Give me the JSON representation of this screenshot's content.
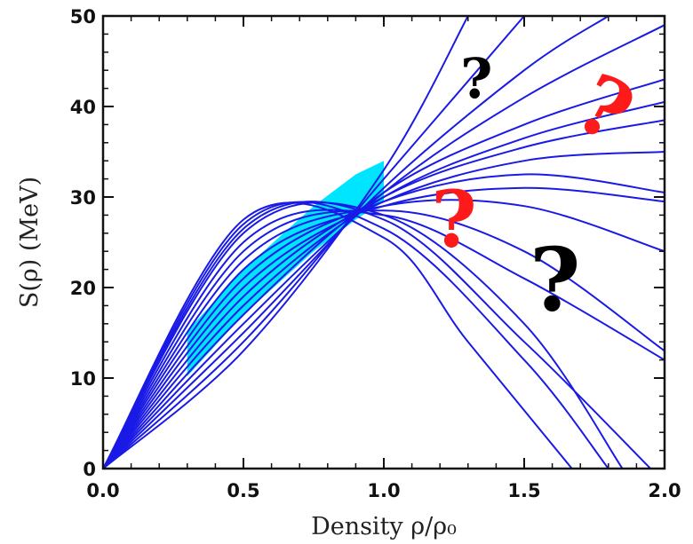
{
  "chart_data": {
    "type": "line",
    "title": "",
    "xlabel": "Density ρ/ρ₀",
    "ylabel": "S(ρ)  (MeV)",
    "xlim": [
      0.0,
      2.0
    ],
    "ylim": [
      0,
      50
    ],
    "x_ticks": [
      "0.0",
      "0.5",
      "1.0",
      "1.5",
      "2.0"
    ],
    "y_ticks": [
      "0",
      "10",
      "20",
      "30",
      "40",
      "50"
    ],
    "grid": false,
    "legend": "none",
    "line_color": "#1a1ae6",
    "band_color": "#00e5ff",
    "band": {
      "x_range": [
        0.3,
        1.0
      ],
      "lower": [
        [
          0.3,
          10.2
        ],
        [
          0.5,
          17.0
        ],
        [
          0.75,
          24.0
        ],
        [
          0.9,
          27.5
        ],
        [
          1.0,
          29.5
        ]
      ],
      "upper": [
        [
          0.3,
          15.2
        ],
        [
          0.5,
          22.0
        ],
        [
          0.75,
          29.0
        ],
        [
          0.9,
          32.5
        ],
        [
          1.0,
          34.0
        ]
      ]
    },
    "series": [
      {
        "x": [
          0.0,
          0.5,
          1.0,
          1.3
        ],
        "y": [
          0,
          13,
          33,
          50
        ]
      },
      {
        "x": [
          0.0,
          0.5,
          1.0,
          1.5
        ],
        "y": [
          0,
          14,
          32,
          50
        ]
      },
      {
        "x": [
          0.0,
          0.5,
          1.0,
          1.5,
          1.8
        ],
        "y": [
          0,
          15,
          31,
          44,
          50
        ]
      },
      {
        "x": [
          0.0,
          0.5,
          1.0,
          1.5,
          2.0
        ],
        "y": [
          0,
          16,
          30.5,
          41,
          49
        ]
      },
      {
        "x": [
          0.0,
          0.5,
          1.0,
          1.5,
          2.0
        ],
        "y": [
          0,
          17,
          30.5,
          38,
          43
        ]
      },
      {
        "x": [
          0.0,
          0.5,
          1.0,
          1.5,
          2.0
        ],
        "y": [
          0,
          18,
          30,
          36.5,
          40.5
        ]
      },
      {
        "x": [
          0.0,
          0.5,
          1.0,
          1.5,
          2.0
        ],
        "y": [
          0,
          19,
          30,
          35.5,
          38.5
        ]
      },
      {
        "x": [
          0.0,
          0.5,
          1.0,
          1.5,
          2.0
        ],
        "y": [
          0,
          20,
          29.5,
          34,
          35
        ]
      },
      {
        "x": [
          0.0,
          0.5,
          1.0,
          1.5,
          2.0
        ],
        "y": [
          0,
          21,
          29.5,
          32.5,
          30.5
        ]
      },
      {
        "x": [
          0.0,
          0.5,
          1.0,
          1.5,
          2.0
        ],
        "y": [
          0,
          22,
          29,
          31,
          29.5
        ]
      },
      {
        "x": [
          0.0,
          0.5,
          1.0,
          1.5,
          2.0
        ],
        "y": [
          0,
          23,
          29,
          29,
          24
        ]
      },
      {
        "x": [
          0.0,
          0.5,
          1.0,
          1.5,
          2.0
        ],
        "y": [
          0,
          24,
          28.5,
          24,
          13
        ]
      },
      {
        "x": [
          0.0,
          0.5,
          1.0,
          1.5,
          2.0
        ],
        "y": [
          0,
          25,
          28,
          21,
          12
        ]
      },
      {
        "x": [
          0.0,
          0.5,
          1.0,
          1.5,
          1.85
        ],
        "y": [
          0,
          26,
          28,
          16,
          0
        ]
      },
      {
        "x": [
          0.0,
          0.5,
          1.0,
          1.5,
          1.95
        ],
        "y": [
          0,
          26.5,
          27.5,
          14,
          0
        ]
      },
      {
        "x": [
          0.0,
          0.5,
          1.0,
          1.5,
          1.8
        ],
        "y": [
          0,
          27,
          26.5,
          12,
          0
        ]
      },
      {
        "x": [
          0.0,
          0.5,
          1.0,
          1.3,
          1.67
        ],
        "y": [
          0,
          27.5,
          25.5,
          14,
          0
        ]
      }
    ],
    "annotations": [
      {
        "text": "?",
        "x": 1.33,
        "y": 41,
        "color": "#000000",
        "size": 62,
        "rotate": 0
      },
      {
        "text": "?",
        "x": 1.74,
        "y": 37,
        "color": "#ff1a1a",
        "size": 92,
        "rotate": 28
      },
      {
        "text": "?",
        "x": 1.25,
        "y": 24.5,
        "color": "#ff1a1a",
        "size": 88,
        "rotate": 0
      },
      {
        "text": "?",
        "x": 1.61,
        "y": 17.5,
        "color": "#000000",
        "size": 98,
        "rotate": 0
      }
    ]
  }
}
